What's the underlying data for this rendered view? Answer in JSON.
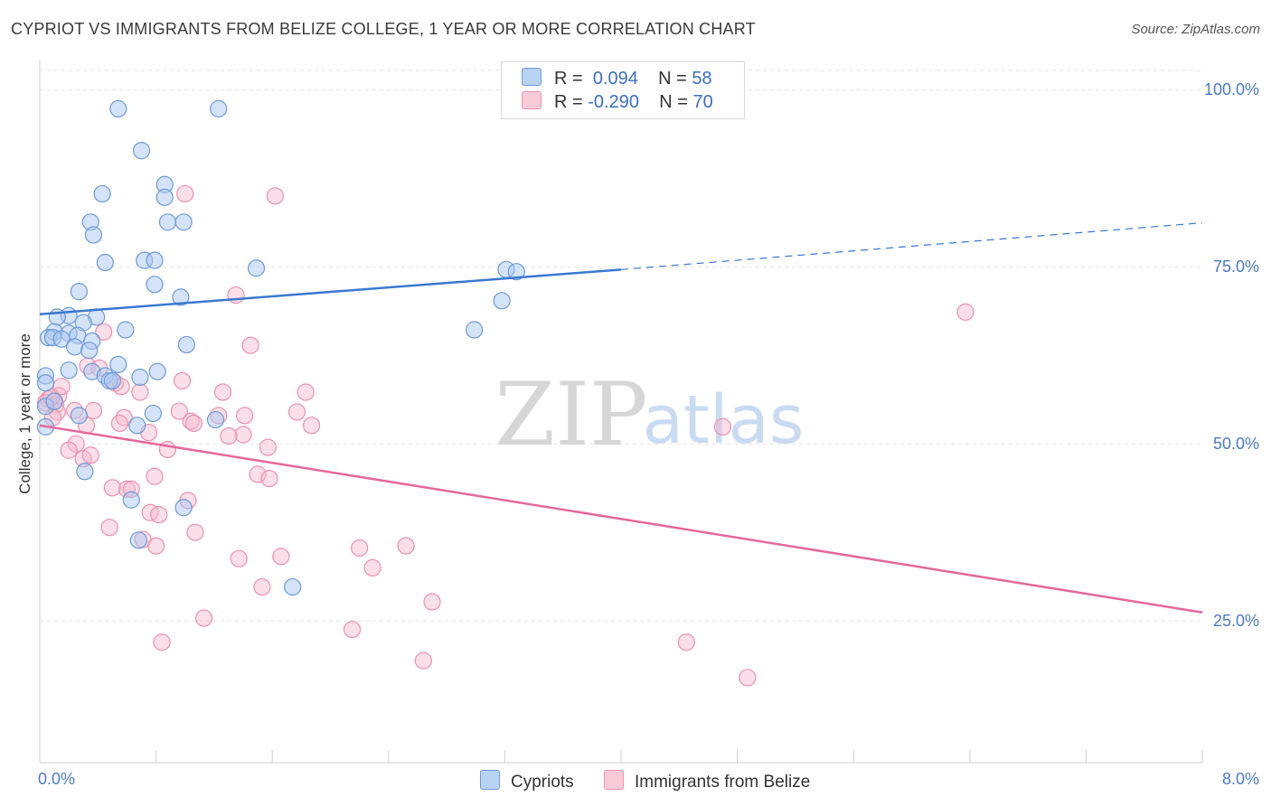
{
  "title": "CYPRIOT VS IMMIGRANTS FROM BELIZE COLLEGE, 1 YEAR OR MORE CORRELATION CHART",
  "source": "Source: ZipAtlas.com",
  "watermark": {
    "zip": "ZIP",
    "atlas": "atlas"
  },
  "colors": {
    "blue_fill": "#a9c7f0",
    "blue_stroke": "#6d9ad8",
    "blue_line": "#3a78d0",
    "pink_fill": "#f6b8cb",
    "pink_stroke": "#ec90ad",
    "pink_line": "#e4689a",
    "tick_color": "#4a7ac8"
  },
  "legend": {
    "rows": [
      {
        "r_label": "R =",
        "r_value": "0.094",
        "n_label": "N =",
        "n_value": "58"
      },
      {
        "r_label": "R =",
        "r_value": "-0.290",
        "n_label": "N =",
        "n_value": "70"
      }
    ]
  },
  "chart_data": {
    "type": "scatter",
    "title": "CYPRIOT VS IMMIGRANTS FROM BELIZE COLLEGE, 1 YEAR OR MORE CORRELATION CHART",
    "xlabel": "",
    "ylabel": "College, 1 year or more",
    "xlim": [
      0,
      8
    ],
    "ylim": [
      5,
      105
    ],
    "x_tick_labels": [
      "0.0%",
      "8.0%"
    ],
    "y_ticks": [
      25,
      50,
      75,
      100
    ],
    "y_tick_labels": [
      "25.0%",
      "50.0%",
      "75.0%",
      "100.0%"
    ],
    "grid": true,
    "legend_position": "top-center",
    "series": [
      {
        "name": "Cypriots",
        "r": 0.094,
        "n": 58,
        "trend": {
          "x0": 0.0,
          "y0": 68.3,
          "x1": 4.0,
          "y1": 74.6,
          "dashed_to_x": 8.0,
          "dashed_to_y": 81.2
        },
        "points": [
          [
            0.54,
            97.3
          ],
          [
            1.23,
            97.3
          ],
          [
            0.7,
            91.4
          ],
          [
            0.86,
            86.6
          ],
          [
            0.43,
            85.3
          ],
          [
            0.86,
            84.8
          ],
          [
            0.35,
            81.3
          ],
          [
            0.88,
            81.3
          ],
          [
            0.99,
            81.3
          ],
          [
            0.37,
            79.5
          ],
          [
            0.72,
            75.9
          ],
          [
            0.79,
            75.9
          ],
          [
            0.45,
            75.6
          ],
          [
            1.49,
            74.8
          ],
          [
            3.21,
            74.6
          ],
          [
            3.28,
            74.3
          ],
          [
            0.79,
            72.5
          ],
          [
            0.27,
            71.5
          ],
          [
            0.97,
            70.7
          ],
          [
            3.18,
            70.2
          ],
          [
            0.2,
            68.1
          ],
          [
            0.12,
            67.9
          ],
          [
            0.39,
            67.9
          ],
          [
            0.3,
            67.1
          ],
          [
            0.59,
            66.1
          ],
          [
            2.99,
            66.1
          ],
          [
            0.1,
            65.8
          ],
          [
            0.2,
            65.6
          ],
          [
            0.26,
            65.3
          ],
          [
            0.06,
            65.0
          ],
          [
            0.09,
            65.0
          ],
          [
            0.15,
            64.8
          ],
          [
            0.36,
            64.5
          ],
          [
            1.01,
            64.0
          ],
          [
            0.24,
            63.7
          ],
          [
            0.34,
            63.2
          ],
          [
            0.54,
            61.2
          ],
          [
            0.2,
            60.4
          ],
          [
            0.36,
            60.2
          ],
          [
            0.81,
            60.2
          ],
          [
            0.04,
            59.6
          ],
          [
            0.45,
            59.6
          ],
          [
            0.69,
            59.4
          ],
          [
            0.48,
            58.9
          ],
          [
            0.5,
            58.9
          ],
          [
            0.04,
            58.6
          ],
          [
            0.78,
            54.3
          ],
          [
            1.21,
            53.4
          ],
          [
            0.67,
            52.6
          ],
          [
            0.04,
            55.3
          ],
          [
            0.31,
            46.1
          ],
          [
            0.63,
            42.1
          ],
          [
            0.99,
            41.0
          ],
          [
            0.68,
            36.4
          ],
          [
            1.74,
            29.8
          ],
          [
            0.1,
            56.0
          ],
          [
            0.27,
            54.0
          ],
          [
            0.04,
            52.4
          ]
        ]
      },
      {
        "name": "Immigrants from Belize",
        "r": -0.29,
        "n": 70,
        "trend": {
          "x0": 0.0,
          "y0": 52.6,
          "x1": 8.0,
          "y1": 26.2
        },
        "points": [
          [
            1.62,
            85.0
          ],
          [
            1.0,
            85.3
          ],
          [
            6.37,
            68.6
          ],
          [
            1.35,
            71.0
          ],
          [
            1.45,
            63.9
          ],
          [
            0.44,
            65.8
          ],
          [
            0.33,
            61.0
          ],
          [
            0.41,
            60.7
          ],
          [
            0.98,
            58.9
          ],
          [
            0.52,
            58.6
          ],
          [
            0.56,
            58.1
          ],
          [
            0.69,
            57.3
          ],
          [
            0.13,
            56.8
          ],
          [
            0.06,
            56.3
          ],
          [
            1.83,
            57.3
          ],
          [
            1.26,
            57.3
          ],
          [
            0.04,
            55.8
          ],
          [
            0.11,
            55.5
          ],
          [
            0.37,
            54.7
          ],
          [
            0.24,
            54.7
          ],
          [
            0.12,
            54.5
          ],
          [
            1.23,
            54.0
          ],
          [
            1.77,
            54.5
          ],
          [
            1.41,
            54.0
          ],
          [
            0.09,
            53.7
          ],
          [
            0.58,
            53.7
          ],
          [
            1.04,
            53.2
          ],
          [
            0.55,
            52.9
          ],
          [
            1.06,
            52.9
          ],
          [
            0.32,
            52.6
          ],
          [
            1.87,
            52.6
          ],
          [
            4.7,
            52.4
          ],
          [
            0.75,
            51.6
          ],
          [
            1.4,
            51.3
          ],
          [
            1.3,
            51.1
          ],
          [
            0.25,
            50.0
          ],
          [
            1.57,
            49.5
          ],
          [
            0.88,
            49.2
          ],
          [
            0.3,
            47.9
          ],
          [
            0.79,
            45.4
          ],
          [
            1.5,
            45.7
          ],
          [
            1.58,
            45.1
          ],
          [
            0.5,
            43.8
          ],
          [
            0.6,
            43.6
          ],
          [
            1.02,
            42.0
          ],
          [
            0.76,
            40.3
          ],
          [
            0.82,
            40.0
          ],
          [
            0.48,
            38.2
          ],
          [
            1.07,
            37.5
          ],
          [
            0.71,
            36.5
          ],
          [
            0.8,
            35.6
          ],
          [
            2.2,
            35.3
          ],
          [
            2.52,
            35.6
          ],
          [
            1.66,
            34.1
          ],
          [
            1.37,
            33.8
          ],
          [
            2.29,
            32.5
          ],
          [
            1.53,
            29.8
          ],
          [
            2.7,
            27.7
          ],
          [
            1.13,
            25.4
          ],
          [
            2.15,
            23.8
          ],
          [
            0.84,
            22.0
          ],
          [
            4.45,
            22.0
          ],
          [
            2.64,
            19.4
          ],
          [
            4.87,
            17.0
          ],
          [
            0.63,
            43.6
          ],
          [
            0.2,
            49.1
          ],
          [
            0.35,
            48.4
          ],
          [
            0.08,
            56.6
          ],
          [
            0.15,
            58.1
          ],
          [
            0.96,
            54.6
          ]
        ]
      }
    ]
  },
  "bottom_legend": [
    "Cypriots",
    "Immigrants from Belize"
  ]
}
